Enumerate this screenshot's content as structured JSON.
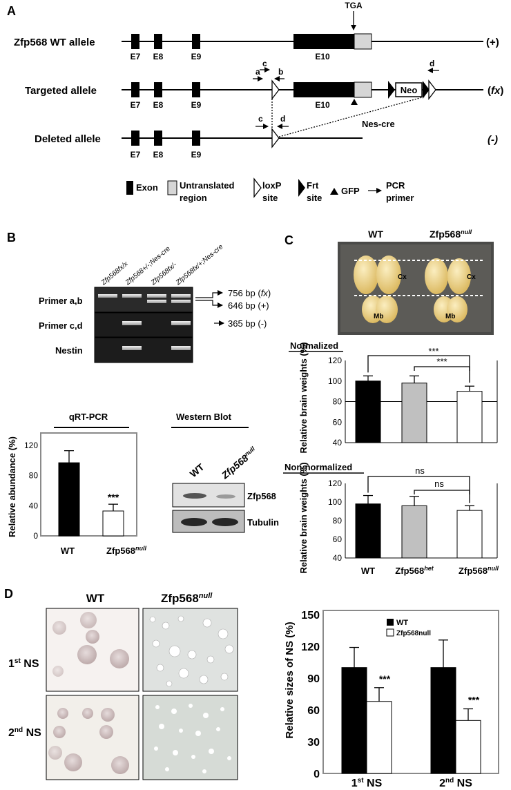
{
  "panel_letters": {
    "a": "A",
    "b": "B",
    "c": "C",
    "d": "D"
  },
  "panelA": {
    "tga": "TGA",
    "rows": [
      {
        "label": "Zfp568 WT allele",
        "genotype": "(+)",
        "exons": [
          "E7",
          "E8",
          "E9",
          "E10"
        ]
      },
      {
        "label": "Targeted allele",
        "genotype_pre": "(",
        "genotype_it": "fx",
        "genotype_post": ")",
        "exons": [
          "E7",
          "E8",
          "E9",
          "E10"
        ],
        "neo": "Neo"
      },
      {
        "label": "Deleted allele",
        "genotype": "(-)",
        "exons": [
          "E7",
          "E8",
          "E9"
        ]
      }
    ],
    "primers": {
      "a": "a",
      "b": "b",
      "c": "c",
      "d": "d"
    },
    "nes_cre": "Nes-cre",
    "legend": {
      "exon": "Exon",
      "utr1": "Untranslated",
      "utr2": "region",
      "loxp1": "loxP",
      "loxp2": "site",
      "frt1": "Frt",
      "frt2": "site",
      "gfp": "GFP",
      "pcr1": "PCR",
      "pcr2": "primer"
    }
  },
  "panelB": {
    "lane_labels": [
      "Zfp568fx/x",
      "Zfp568+/-;Nes-cre",
      "Zfp568fx/-",
      "Zfp568fx/+;Nes-cre"
    ],
    "row_labels": [
      "Primer a,b",
      "Primer c,d",
      "Nestin"
    ],
    "band_labels": {
      "fx_pre": "756 bp (",
      "fx_it": "fx",
      "fx_post": ")",
      "wt": "646 bp (+)",
      "del": "365 bp (-)"
    },
    "western_title": "Western Blot",
    "western_lanes": {
      "wt": "WT",
      "null": "Zfp568",
      "null_sup": "null"
    },
    "western_bands": [
      "Zfp568",
      "Tubulin"
    ]
  },
  "panelC": {
    "photo_labels": {
      "wt": "WT",
      "null": "Zfp568",
      "null_sup": "null",
      "cx": "Cx",
      "mb": "Mb"
    },
    "x_labels": [
      {
        "t": "WT",
        "s": ""
      },
      {
        "t": "Zfp568",
        "s": "het"
      },
      {
        "t": "Zfp568",
        "s": "null"
      }
    ],
    "significance": {
      "star": "***",
      "ns": "ns"
    }
  },
  "panelD": {
    "col_labels": {
      "wt": "WT",
      "null": "Zfp568",
      "null_sup": "null"
    },
    "row_labels": [
      {
        "t": "1",
        "s": "st",
        "u": " NS"
      },
      {
        "t": "2",
        "s": "nd",
        "u": " NS"
      }
    ],
    "stars": "***"
  },
  "chart_data": [
    {
      "type": "bar",
      "title": "qRT-PCR",
      "categories": [
        "WT",
        "Zfp568null"
      ],
      "values": [
        97,
        33
      ],
      "errors": [
        16,
        9
      ],
      "ylabel": "Relative abundance (%)",
      "ylim": [
        0,
        120
      ],
      "yticks": [
        0,
        40,
        80,
        120
      ],
      "annotations": [
        "***"
      ],
      "colors": [
        "#000000",
        "#ffffff"
      ]
    },
    {
      "type": "bar",
      "title": "Normalized",
      "categories": [
        "WT",
        "Zfp568het",
        "Zfp568null"
      ],
      "values": [
        100,
        98,
        90
      ],
      "errors": [
        5,
        7,
        5
      ],
      "ylabel": "Relative brain weights (%)",
      "ylim": [
        40,
        120
      ],
      "yticks": [
        40,
        60,
        80,
        100,
        120
      ],
      "reference_line": 80,
      "annotations": [
        "***",
        "***"
      ],
      "colors": [
        "#000000",
        "#c0c0c0",
        "#ffffff"
      ]
    },
    {
      "type": "bar",
      "title": "Non-normalized",
      "categories": [
        "WT",
        "Zfp568het",
        "Zfp568null"
      ],
      "values": [
        98,
        96,
        91
      ],
      "errors": [
        9,
        10,
        5
      ],
      "ylabel": "Relative brain weights (%)",
      "ylim": [
        40,
        120
      ],
      "yticks": [
        40,
        60,
        80,
        100,
        120
      ],
      "annotations": [
        "ns",
        "ns"
      ],
      "colors": [
        "#000000",
        "#c0c0c0",
        "#ffffff"
      ]
    },
    {
      "type": "bar",
      "categories": [
        "1st NS",
        "2nd NS"
      ],
      "series": [
        {
          "name": "WT",
          "values": [
            100,
            100
          ],
          "errors": [
            19,
            26
          ],
          "color": "#000000"
        },
        {
          "name": "Zfp568null",
          "values": [
            68,
            50
          ],
          "errors": [
            13,
            11
          ],
          "color": "#ffffff"
        }
      ],
      "ylabel": "Relative sizes of NS (%)",
      "ylim": [
        0,
        150
      ],
      "yticks": [
        0,
        30,
        60,
        90,
        120,
        150
      ],
      "annotations": [
        "***",
        "***"
      ]
    }
  ]
}
